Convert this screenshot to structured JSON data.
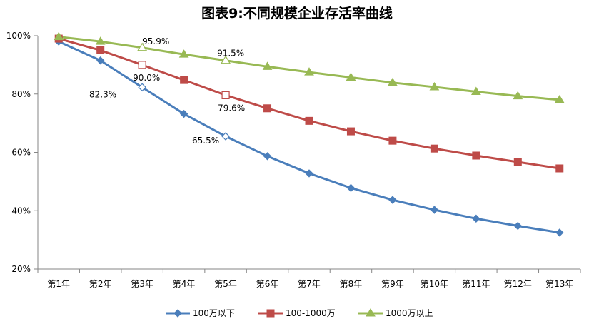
{
  "chart_data": {
    "type": "line",
    "title": "图表9:不同规模企业存活率曲线",
    "xlabel": "",
    "ylabel": "",
    "categories": [
      "第1年",
      "第2年",
      "第3年",
      "第4年",
      "第5年",
      "第6年",
      "第7年",
      "第8年",
      "第9年",
      "第10年",
      "第11年",
      "第12年",
      "第13年"
    ],
    "ylim": [
      20,
      100
    ],
    "yticks": [
      "20%",
      "40%",
      "60%",
      "80%",
      "100%"
    ],
    "grid": false,
    "legend_position": "bottom",
    "series": [
      {
        "name": "100万以下",
        "color": "#4a7ebb",
        "marker": "diamond",
        "values": [
          98.0,
          91.5,
          82.3,
          73.2,
          65.5,
          58.7,
          52.8,
          47.8,
          43.7,
          40.3,
          37.3,
          34.8,
          32.5
        ]
      },
      {
        "name": "100-1000万",
        "color": "#be4b48",
        "marker": "square",
        "values": [
          99.0,
          95.0,
          90.0,
          84.8,
          79.6,
          75.1,
          70.8,
          67.2,
          64.0,
          61.3,
          58.9,
          56.7,
          54.5
        ]
      },
      {
        "name": "1000万以上",
        "color": "#98b954",
        "marker": "triangle",
        "values": [
          99.6,
          98.0,
          95.9,
          93.6,
          91.5,
          89.4,
          87.5,
          85.7,
          83.9,
          82.4,
          80.8,
          79.3,
          78.0
        ]
      }
    ],
    "annotations": [
      {
        "series": 0,
        "index": 2,
        "text": "82.3%"
      },
      {
        "series": 0,
        "index": 4,
        "text": "65.5%"
      },
      {
        "series": 1,
        "index": 2,
        "text": "90.0%"
      },
      {
        "series": 1,
        "index": 4,
        "text": "79.6%"
      },
      {
        "series": 2,
        "index": 2,
        "text": "95.9%"
      },
      {
        "series": 2,
        "index": 4,
        "text": "91.5%"
      }
    ]
  }
}
